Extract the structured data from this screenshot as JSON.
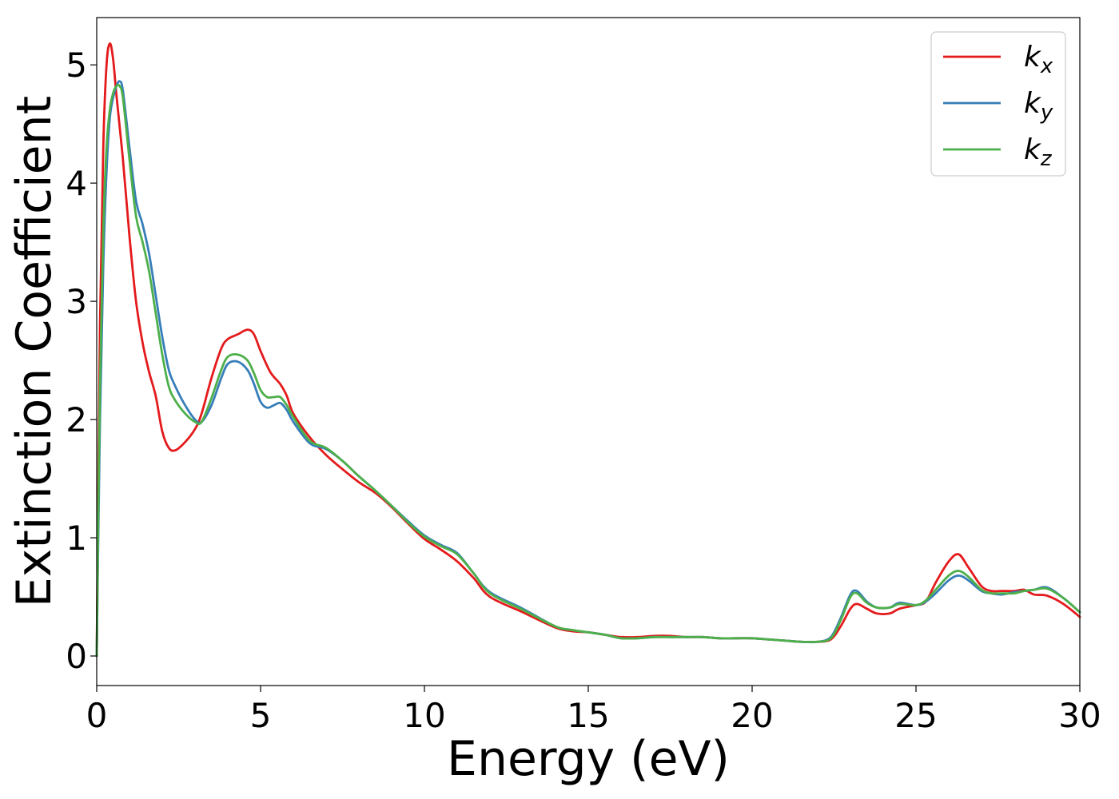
{
  "chart_data": {
    "type": "line",
    "title": "",
    "xlabel": "Energy (eV)",
    "ylabel": "Extinction Coefficient",
    "xlim": [
      0,
      30
    ],
    "ylim": [
      -0.25,
      5.4
    ],
    "xticks": [
      0,
      5,
      10,
      15,
      20,
      25,
      30
    ],
    "xtick_labels": [
      "0",
      "5",
      "10",
      "15",
      "20",
      "25",
      "30"
    ],
    "yticks": [
      0,
      1,
      2,
      3,
      4,
      5
    ],
    "ytick_labels": [
      "0",
      "1",
      "2",
      "3",
      "4",
      "5"
    ],
    "grid": false,
    "legend_position": "top-right",
    "series": [
      {
        "name": "k",
        "subscript": "x",
        "color": "#e41a1c",
        "x": [
          0,
          0.1,
          0.2,
          0.3,
          0.4,
          0.5,
          0.6,
          0.8,
          1.0,
          1.2,
          1.4,
          1.6,
          1.8,
          2.0,
          2.2,
          2.4,
          2.7,
          3.0,
          3.2,
          3.5,
          3.8,
          4.0,
          4.3,
          4.6,
          4.8,
          5.0,
          5.3,
          5.6,
          5.8,
          6.0,
          6.5,
          7.0,
          7.5,
          8.0,
          8.5,
          9.0,
          9.5,
          10.0,
          10.5,
          11.0,
          11.5,
          12.0,
          13.0,
          14.0,
          14.5,
          15.0,
          15.5,
          16.0,
          16.5,
          17.0,
          17.5,
          18.0,
          18.5,
          19.0,
          19.5,
          20.0,
          20.5,
          21.0,
          21.5,
          22.0,
          22.4,
          22.7,
          23.0,
          23.2,
          23.5,
          23.8,
          24.2,
          24.5,
          25.0,
          25.3,
          25.6,
          26.0,
          26.3,
          26.6,
          27.0,
          27.3,
          27.6,
          28.0,
          28.3,
          28.6,
          29.0,
          29.5,
          30.0
        ],
        "values": [
          0,
          2.8,
          4.3,
          5.0,
          5.18,
          5.05,
          4.75,
          4.2,
          3.55,
          3.0,
          2.65,
          2.4,
          2.2,
          1.9,
          1.76,
          1.74,
          1.81,
          1.92,
          2.05,
          2.35,
          2.6,
          2.68,
          2.72,
          2.76,
          2.72,
          2.58,
          2.4,
          2.3,
          2.2,
          2.05,
          1.85,
          1.7,
          1.58,
          1.47,
          1.38,
          1.26,
          1.12,
          0.99,
          0.9,
          0.8,
          0.66,
          0.5,
          0.37,
          0.24,
          0.21,
          0.2,
          0.18,
          0.16,
          0.16,
          0.17,
          0.17,
          0.16,
          0.16,
          0.15,
          0.15,
          0.15,
          0.14,
          0.13,
          0.12,
          0.12,
          0.14,
          0.25,
          0.4,
          0.44,
          0.4,
          0.36,
          0.36,
          0.4,
          0.43,
          0.46,
          0.62,
          0.8,
          0.86,
          0.75,
          0.59,
          0.55,
          0.55,
          0.55,
          0.56,
          0.52,
          0.51,
          0.44,
          0.33
        ]
      },
      {
        "name": "k",
        "subscript": "y",
        "color": "#377eb8",
        "x": [
          0,
          0.1,
          0.2,
          0.3,
          0.4,
          0.5,
          0.6,
          0.7,
          0.8,
          1.0,
          1.2,
          1.4,
          1.6,
          1.8,
          2.0,
          2.2,
          2.4,
          2.7,
          3.0,
          3.2,
          3.5,
          3.8,
          4.0,
          4.3,
          4.6,
          4.8,
          5.0,
          5.2,
          5.4,
          5.6,
          5.8,
          6.0,
          6.5,
          7.0,
          7.5,
          8.0,
          8.5,
          9.0,
          9.5,
          10.0,
          10.5,
          11.0,
          11.5,
          12.0,
          13.0,
          14.0,
          14.5,
          15.0,
          15.5,
          16.0,
          16.5,
          17.0,
          17.5,
          18.0,
          18.5,
          19.0,
          19.5,
          20.0,
          20.5,
          21.0,
          21.5,
          22.0,
          22.4,
          22.7,
          23.0,
          23.2,
          23.5,
          23.8,
          24.2,
          24.5,
          25.0,
          25.3,
          25.6,
          26.0,
          26.3,
          26.6,
          27.0,
          27.3,
          27.6,
          28.0,
          28.3,
          28.6,
          29.0,
          29.5,
          30.0
        ],
        "values": [
          0,
          2.0,
          3.3,
          4.1,
          4.55,
          4.72,
          4.82,
          4.86,
          4.78,
          4.3,
          3.85,
          3.65,
          3.4,
          3.05,
          2.7,
          2.42,
          2.28,
          2.12,
          2.0,
          1.98,
          2.12,
          2.35,
          2.47,
          2.49,
          2.42,
          2.3,
          2.15,
          2.1,
          2.12,
          2.14,
          2.08,
          1.98,
          1.8,
          1.75,
          1.65,
          1.52,
          1.4,
          1.27,
          1.14,
          1.02,
          0.94,
          0.87,
          0.7,
          0.54,
          0.4,
          0.25,
          0.22,
          0.2,
          0.18,
          0.15,
          0.15,
          0.16,
          0.16,
          0.16,
          0.16,
          0.15,
          0.15,
          0.15,
          0.14,
          0.13,
          0.12,
          0.12,
          0.16,
          0.32,
          0.52,
          0.55,
          0.46,
          0.41,
          0.41,
          0.45,
          0.43,
          0.46,
          0.53,
          0.64,
          0.68,
          0.64,
          0.55,
          0.53,
          0.52,
          0.54,
          0.55,
          0.56,
          0.58,
          0.49,
          0.37
        ]
      },
      {
        "name": "k",
        "subscript": "z",
        "color": "#4daf4a",
        "x": [
          0,
          0.1,
          0.2,
          0.3,
          0.4,
          0.5,
          0.6,
          0.7,
          0.8,
          1.0,
          1.2,
          1.4,
          1.6,
          1.8,
          2.0,
          2.2,
          2.4,
          2.7,
          3.0,
          3.2,
          3.5,
          3.8,
          4.0,
          4.3,
          4.6,
          4.8,
          5.0,
          5.2,
          5.4,
          5.6,
          5.8,
          6.0,
          6.5,
          7.0,
          7.5,
          8.0,
          8.5,
          9.0,
          9.5,
          10.0,
          10.5,
          11.0,
          11.5,
          12.0,
          13.0,
          14.0,
          14.5,
          15.0,
          15.5,
          16.0,
          16.5,
          17.0,
          17.5,
          18.0,
          18.5,
          19.0,
          19.5,
          20.0,
          20.5,
          21.0,
          21.5,
          22.0,
          22.4,
          22.7,
          23.0,
          23.2,
          23.5,
          23.8,
          24.2,
          24.5,
          25.0,
          25.3,
          25.6,
          26.0,
          26.3,
          26.6,
          27.0,
          27.3,
          27.6,
          28.0,
          28.3,
          28.6,
          29.0,
          29.5,
          30.0
        ],
        "values": [
          0,
          2.3,
          3.6,
          4.3,
          4.62,
          4.76,
          4.82,
          4.82,
          4.72,
          4.2,
          3.72,
          3.5,
          3.25,
          2.9,
          2.55,
          2.28,
          2.16,
          2.05,
          1.98,
          1.98,
          2.18,
          2.42,
          2.53,
          2.55,
          2.5,
          2.39,
          2.25,
          2.19,
          2.19,
          2.19,
          2.12,
          2.02,
          1.82,
          1.76,
          1.65,
          1.52,
          1.4,
          1.27,
          1.13,
          1.01,
          0.93,
          0.86,
          0.7,
          0.53,
          0.39,
          0.25,
          0.22,
          0.2,
          0.18,
          0.15,
          0.15,
          0.16,
          0.16,
          0.16,
          0.16,
          0.15,
          0.15,
          0.15,
          0.14,
          0.13,
          0.12,
          0.12,
          0.15,
          0.3,
          0.5,
          0.53,
          0.45,
          0.41,
          0.41,
          0.44,
          0.43,
          0.47,
          0.56,
          0.68,
          0.72,
          0.67,
          0.56,
          0.53,
          0.53,
          0.53,
          0.55,
          0.56,
          0.57,
          0.49,
          0.37
        ]
      }
    ]
  }
}
